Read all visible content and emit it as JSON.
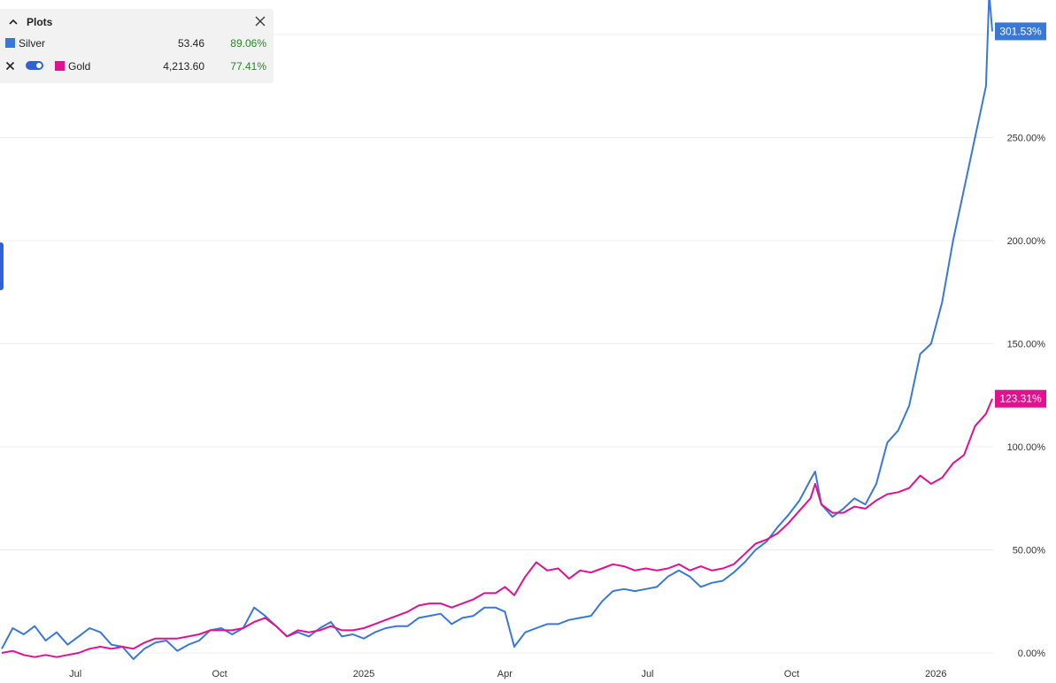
{
  "legend": {
    "title": "Plots",
    "rows": [
      {
        "name": "Silver",
        "price": "53.46",
        "change": "89.06%",
        "color": "#3a78d8"
      },
      {
        "name": "Gold",
        "price": "4,213.60",
        "change": "77.41%",
        "color": "#e0128f"
      }
    ]
  },
  "chart_data": {
    "type": "line",
    "x_tick_labels": [
      "Jul",
      "Oct",
      "2025",
      "Apr",
      "Jul",
      "Oct",
      "2026"
    ],
    "y_tick_labels": [
      "0.00%",
      "50.00%",
      "100.00%",
      "150.00%",
      "200.00%",
      "250.00%"
    ],
    "ylim": [
      0,
      300
    ],
    "grid": true,
    "series": [
      {
        "name": "Silver",
        "color": "#3a78d8",
        "last_label": "301.53%",
        "points": [
          [
            "2024-05-15",
            2
          ],
          [
            "2024-05-22",
            12
          ],
          [
            "2024-05-29",
            9
          ],
          [
            "2024-06-05",
            13
          ],
          [
            "2024-06-12",
            6
          ],
          [
            "2024-06-19",
            10
          ],
          [
            "2024-06-26",
            4
          ],
          [
            "2024-07-03",
            8
          ],
          [
            "2024-07-10",
            12
          ],
          [
            "2024-07-17",
            10
          ],
          [
            "2024-07-24",
            4
          ],
          [
            "2024-07-31",
            3
          ],
          [
            "2024-08-07",
            -3
          ],
          [
            "2024-08-14",
            2
          ],
          [
            "2024-08-21",
            5
          ],
          [
            "2024-08-28",
            6
          ],
          [
            "2024-09-04",
            1
          ],
          [
            "2024-09-11",
            4
          ],
          [
            "2024-09-18",
            6
          ],
          [
            "2024-09-25",
            11
          ],
          [
            "2024-10-02",
            12
          ],
          [
            "2024-10-09",
            9
          ],
          [
            "2024-10-16",
            12
          ],
          [
            "2024-10-23",
            22
          ],
          [
            "2024-10-30",
            18
          ],
          [
            "2024-11-06",
            13
          ],
          [
            "2024-11-13",
            8
          ],
          [
            "2024-11-20",
            10
          ],
          [
            "2024-11-27",
            8
          ],
          [
            "2024-12-04",
            12
          ],
          [
            "2024-12-11",
            15
          ],
          [
            "2024-12-18",
            8
          ],
          [
            "2024-12-25",
            9
          ],
          [
            "2025-01-01",
            7
          ],
          [
            "2025-01-08",
            10
          ],
          [
            "2025-01-15",
            12
          ],
          [
            "2025-01-22",
            13
          ],
          [
            "2025-01-29",
            13
          ],
          [
            "2025-02-05",
            17
          ],
          [
            "2025-02-12",
            18
          ],
          [
            "2025-02-19",
            19
          ],
          [
            "2025-02-26",
            14
          ],
          [
            "2025-03-05",
            17
          ],
          [
            "2025-03-12",
            18
          ],
          [
            "2025-03-19",
            22
          ],
          [
            "2025-03-26",
            22
          ],
          [
            "2025-04-01",
            20
          ],
          [
            "2025-04-07",
            3
          ],
          [
            "2025-04-14",
            10
          ],
          [
            "2025-04-21",
            12
          ],
          [
            "2025-04-28",
            14
          ],
          [
            "2025-05-05",
            14
          ],
          [
            "2025-05-12",
            16
          ],
          [
            "2025-05-19",
            17
          ],
          [
            "2025-05-26",
            18
          ],
          [
            "2025-06-02",
            25
          ],
          [
            "2025-06-09",
            30
          ],
          [
            "2025-06-16",
            31
          ],
          [
            "2025-06-23",
            30
          ],
          [
            "2025-06-30",
            31
          ],
          [
            "2025-07-07",
            32
          ],
          [
            "2025-07-14",
            37
          ],
          [
            "2025-07-21",
            40
          ],
          [
            "2025-07-28",
            37
          ],
          [
            "2025-08-04",
            32
          ],
          [
            "2025-08-11",
            34
          ],
          [
            "2025-08-18",
            35
          ],
          [
            "2025-08-25",
            39
          ],
          [
            "2025-09-01",
            44
          ],
          [
            "2025-09-08",
            50
          ],
          [
            "2025-09-15",
            54
          ],
          [
            "2025-09-22",
            61
          ],
          [
            "2025-09-29",
            67
          ],
          [
            "2025-10-06",
            74
          ],
          [
            "2025-10-13",
            84
          ],
          [
            "2025-10-16",
            88
          ],
          [
            "2025-10-20",
            72
          ],
          [
            "2025-10-27",
            66
          ],
          [
            "2025-11-03",
            70
          ],
          [
            "2025-11-10",
            75
          ],
          [
            "2025-11-17",
            72
          ],
          [
            "2025-11-24",
            82
          ],
          [
            "2025-12-01",
            102
          ],
          [
            "2025-12-08",
            108
          ],
          [
            "2025-12-15",
            120
          ],
          [
            "2025-12-22",
            145
          ],
          [
            "2025-12-29",
            150
          ],
          [
            "2026-01-05",
            170
          ],
          [
            "2026-01-12",
            200
          ],
          [
            "2026-01-19",
            225
          ],
          [
            "2026-01-26",
            250
          ],
          [
            "2026-02-02",
            275
          ],
          [
            "2026-02-04",
            320
          ],
          [
            "2026-02-06",
            301.53
          ]
        ]
      },
      {
        "name": "Gold",
        "color": "#e0128f",
        "last_label": "123.31%",
        "points": [
          [
            "2024-05-15",
            0
          ],
          [
            "2024-05-22",
            1
          ],
          [
            "2024-05-29",
            -1
          ],
          [
            "2024-06-05",
            -2
          ],
          [
            "2024-06-12",
            -1
          ],
          [
            "2024-06-19",
            -2
          ],
          [
            "2024-06-26",
            -1
          ],
          [
            "2024-07-03",
            0
          ],
          [
            "2024-07-10",
            2
          ],
          [
            "2024-07-17",
            3
          ],
          [
            "2024-07-24",
            2
          ],
          [
            "2024-07-31",
            3
          ],
          [
            "2024-08-07",
            2
          ],
          [
            "2024-08-14",
            5
          ],
          [
            "2024-08-21",
            7
          ],
          [
            "2024-08-28",
            7
          ],
          [
            "2024-09-04",
            7
          ],
          [
            "2024-09-11",
            8
          ],
          [
            "2024-09-18",
            9
          ],
          [
            "2024-09-25",
            11
          ],
          [
            "2024-10-02",
            11
          ],
          [
            "2024-10-09",
            11
          ],
          [
            "2024-10-16",
            12
          ],
          [
            "2024-10-23",
            15
          ],
          [
            "2024-10-30",
            17
          ],
          [
            "2024-11-06",
            13
          ],
          [
            "2024-11-13",
            8
          ],
          [
            "2024-11-20",
            11
          ],
          [
            "2024-11-27",
            10
          ],
          [
            "2024-12-04",
            11
          ],
          [
            "2024-12-11",
            13
          ],
          [
            "2024-12-18",
            11
          ],
          [
            "2024-12-25",
            11
          ],
          [
            "2025-01-01",
            12
          ],
          [
            "2025-01-08",
            14
          ],
          [
            "2025-01-15",
            16
          ],
          [
            "2025-01-22",
            18
          ],
          [
            "2025-01-29",
            20
          ],
          [
            "2025-02-05",
            23
          ],
          [
            "2025-02-12",
            24
          ],
          [
            "2025-02-19",
            24
          ],
          [
            "2025-02-26",
            22
          ],
          [
            "2025-03-05",
            24
          ],
          [
            "2025-03-12",
            26
          ],
          [
            "2025-03-19",
            29
          ],
          [
            "2025-03-26",
            29
          ],
          [
            "2025-04-01",
            32
          ],
          [
            "2025-04-07",
            28
          ],
          [
            "2025-04-14",
            37
          ],
          [
            "2025-04-21",
            44
          ],
          [
            "2025-04-28",
            40
          ],
          [
            "2025-05-05",
            41
          ],
          [
            "2025-05-12",
            36
          ],
          [
            "2025-05-19",
            40
          ],
          [
            "2025-05-26",
            39
          ],
          [
            "2025-06-02",
            41
          ],
          [
            "2025-06-09",
            43
          ],
          [
            "2025-06-16",
            42
          ],
          [
            "2025-06-23",
            40
          ],
          [
            "2025-06-30",
            41
          ],
          [
            "2025-07-07",
            40
          ],
          [
            "2025-07-14",
            41
          ],
          [
            "2025-07-21",
            43
          ],
          [
            "2025-07-28",
            40
          ],
          [
            "2025-08-04",
            42
          ],
          [
            "2025-08-11",
            40
          ],
          [
            "2025-08-18",
            41
          ],
          [
            "2025-08-25",
            43
          ],
          [
            "2025-09-01",
            48
          ],
          [
            "2025-09-08",
            53
          ],
          [
            "2025-09-15",
            55
          ],
          [
            "2025-09-22",
            58
          ],
          [
            "2025-09-29",
            63
          ],
          [
            "2025-10-06",
            69
          ],
          [
            "2025-10-13",
            75
          ],
          [
            "2025-10-16",
            82
          ],
          [
            "2025-10-20",
            72
          ],
          [
            "2025-10-27",
            68
          ],
          [
            "2025-11-03",
            68
          ],
          [
            "2025-11-10",
            71
          ],
          [
            "2025-11-17",
            70
          ],
          [
            "2025-11-24",
            74
          ],
          [
            "2025-12-01",
            77
          ],
          [
            "2025-12-08",
            78
          ],
          [
            "2025-12-15",
            80
          ],
          [
            "2025-12-22",
            86
          ],
          [
            "2025-12-29",
            82
          ],
          [
            "2026-01-05",
            85
          ],
          [
            "2026-01-12",
            92
          ],
          [
            "2026-01-19",
            96
          ],
          [
            "2026-01-26",
            110
          ],
          [
            "2026-02-02",
            116
          ],
          [
            "2026-02-06",
            123.31
          ]
        ]
      }
    ]
  }
}
